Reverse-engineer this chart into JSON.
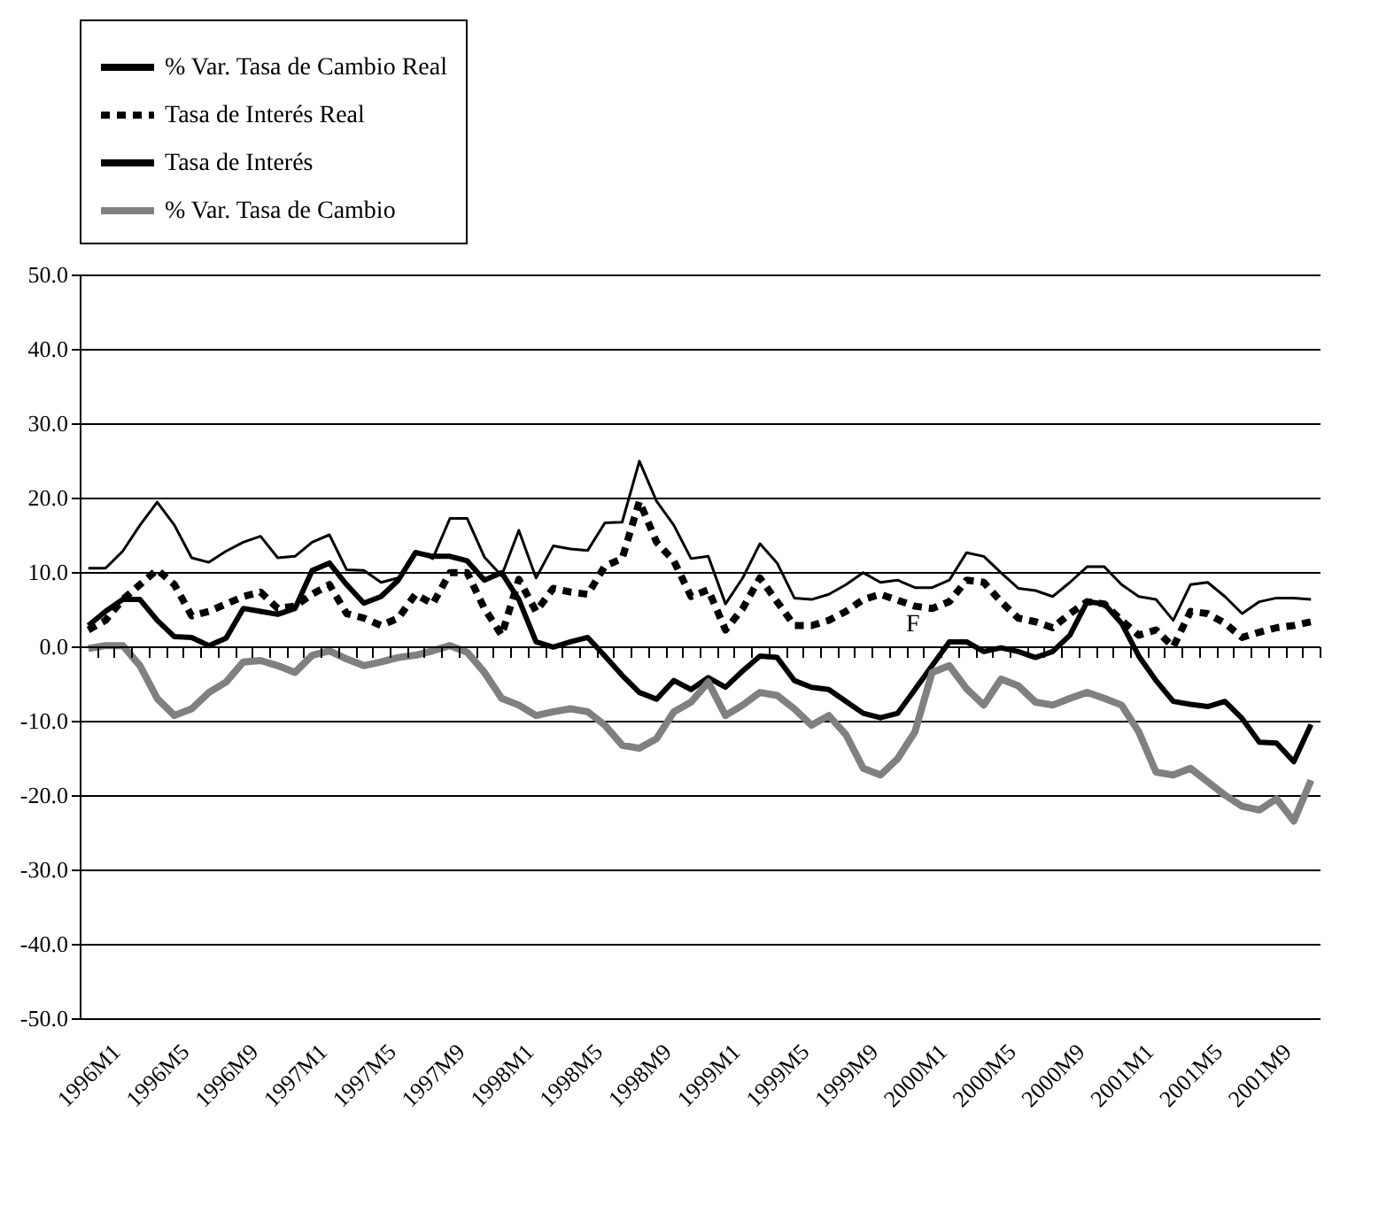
{
  "chart_data": {
    "type": "line",
    "categories": [
      "1996M1",
      null,
      null,
      null,
      "1996M5",
      null,
      null,
      null,
      "1996M9",
      null,
      null,
      null,
      "1997M1",
      null,
      null,
      null,
      "1997M5",
      null,
      null,
      null,
      "1997M9",
      null,
      null,
      null,
      "1998M1",
      null,
      null,
      null,
      "1998M5",
      null,
      null,
      null,
      "1998M9",
      null,
      null,
      null,
      "1999M1",
      null,
      null,
      null,
      "1999M5",
      null,
      null,
      null,
      "1999M9",
      null,
      null,
      null,
      "2000M1",
      null,
      null,
      null,
      "2000M5",
      null,
      null,
      null,
      "2000M9",
      null,
      null,
      null,
      "2001M1",
      null,
      null,
      null,
      "2001M5",
      null,
      null,
      null,
      "2001M9",
      null,
      null,
      null
    ],
    "series": [
      {
        "name": "% Var. Tasa de Cambio Real",
        "color": "#000000",
        "values": [
          2.8,
          4.7,
          6.3,
          6.3,
          3.5,
          1.3,
          1.2,
          0.1,
          1.1,
          5.1,
          4.7,
          4.3,
          5.1,
          10.2,
          11.2,
          8.3,
          5.8,
          6.7,
          8.9,
          12.6,
          12.1,
          12.1,
          11.5,
          8.9,
          9.9,
          6.3,
          0.6,
          -0.1,
          0.6,
          1.2,
          -1.3,
          -3.9,
          -6.2,
          -7.1,
          -4.6,
          -5.8,
          -4.2,
          -5.5,
          -3.3,
          -1.3,
          -1.5,
          -4.6,
          -5.5,
          -5.8,
          -7.4,
          -9.0,
          -9.6,
          -9.0,
          -5.8,
          -2.6,
          0.6,
          0.6,
          -0.7,
          -0.2,
          -0.7,
          -1.5,
          -0.7,
          1.5,
          6.0,
          5.7,
          3.1,
          -1.3,
          -4.6,
          -7.4,
          -7.8,
          -8.1,
          -7.4,
          -9.7,
          -12.9,
          -13.0,
          -15.5,
          -10.5
        ]
      },
      {
        "name": "Tasa de Interés Real",
        "color": "#000000",
        "line_style": "dashed",
        "values": [
          2.2,
          3.5,
          6.3,
          8.3,
          10.3,
          8.3,
          4.1,
          4.7,
          5.7,
          6.7,
          7.3,
          5.1,
          5.4,
          7.0,
          8.3,
          4.4,
          3.8,
          2.8,
          3.8,
          7.0,
          5.7,
          9.9,
          9.9,
          5.1,
          1.5,
          9.0,
          4.7,
          7.8,
          7.3,
          7.0,
          10.8,
          11.8,
          19.5,
          14.0,
          11.5,
          6.7,
          7.6,
          2.2,
          5.1,
          9.2,
          6.0,
          2.8,
          2.8,
          3.5,
          4.7,
          6.3,
          7.0,
          6.2,
          5.4,
          5.1,
          6.0,
          8.9,
          8.6,
          6.0,
          3.8,
          3.3,
          2.5,
          4.4,
          6.0,
          5.7,
          3.5,
          1.5,
          2.2,
          -0.1,
          4.7,
          4.4,
          3.1,
          1.2,
          1.9,
          2.5,
          2.8,
          3.3
        ]
      },
      {
        "name": "Tasa de Interés",
        "color": "#000000",
        "values": [
          10.5,
          10.5,
          12.8,
          16.3,
          19.4,
          16.3,
          11.9,
          11.3,
          12.8,
          14.0,
          14.8,
          11.9,
          12.1,
          14.0,
          15.0,
          10.3,
          10.2,
          8.6,
          9.2,
          12.8,
          11.8,
          17.2,
          17.2,
          12.0,
          9.5,
          15.6,
          9.2,
          13.5,
          13.1,
          12.9,
          16.6,
          16.7,
          24.9,
          19.5,
          16.3,
          11.8,
          12.1,
          5.7,
          9.2,
          13.8,
          11.2,
          6.5,
          6.3,
          7.0,
          8.3,
          9.9,
          8.6,
          8.9,
          7.9,
          7.9,
          8.9,
          12.6,
          12.1,
          9.9,
          7.8,
          7.5,
          6.7,
          8.6,
          10.7,
          10.7,
          8.3,
          6.7,
          6.3,
          3.5,
          8.3,
          8.6,
          6.7,
          4.4,
          6.0,
          6.5,
          6.5,
          6.3
        ]
      },
      {
        "name": "% Var. Tasa de Cambio",
        "color": "#808080",
        "values": [
          -0.3,
          0.1,
          0.1,
          -2.6,
          -7.0,
          -9.3,
          -8.4,
          -6.2,
          -4.8,
          -2.1,
          -1.9,
          -2.6,
          -3.5,
          -1.2,
          -0.6,
          -1.7,
          -2.6,
          -2.1,
          -1.5,
          -1.2,
          -0.6,
          0.1,
          -0.8,
          -3.5,
          -7.0,
          -7.9,
          -9.3,
          -8.8,
          -8.4,
          -8.8,
          -10.6,
          -13.3,
          -13.7,
          -12.4,
          -8.8,
          -7.5,
          -4.8,
          -9.3,
          -7.9,
          -6.2,
          -6.6,
          -8.4,
          -10.6,
          -9.3,
          -11.9,
          -16.4,
          -17.3,
          -15.1,
          -11.5,
          -3.5,
          -2.6,
          -5.7,
          -7.9,
          -4.4,
          -5.3,
          -7.5,
          -7.9,
          -7.0,
          -6.2,
          -7.0,
          -7.9,
          -11.5,
          -16.9,
          -17.3,
          -16.4,
          -18.2,
          -20.0,
          -21.5,
          -22.0,
          -20.5,
          -23.5,
          -18.0
        ]
      }
    ],
    "ylim": [
      -50,
      50
    ],
    "yticks": [
      {
        "value": -50,
        "label": "-50.0"
      },
      {
        "value": -40,
        "label": "-40.0"
      },
      {
        "value": -30,
        "label": "-30.0"
      },
      {
        "value": -20,
        "label": "-20.0"
      },
      {
        "value": -10,
        "label": "-10.0"
      },
      {
        "value": 0,
        "label": "0.0"
      },
      {
        "value": 10,
        "label": "10.0"
      },
      {
        "value": 20,
        "label": "20.0"
      },
      {
        "value": 30,
        "label": "30.0"
      },
      {
        "value": 40,
        "label": "40.0"
      },
      {
        "value": 50,
        "label": "50.0"
      }
    ],
    "grid": "y",
    "legend": "top",
    "marker": "none",
    "annotations": [
      "F"
    ]
  }
}
